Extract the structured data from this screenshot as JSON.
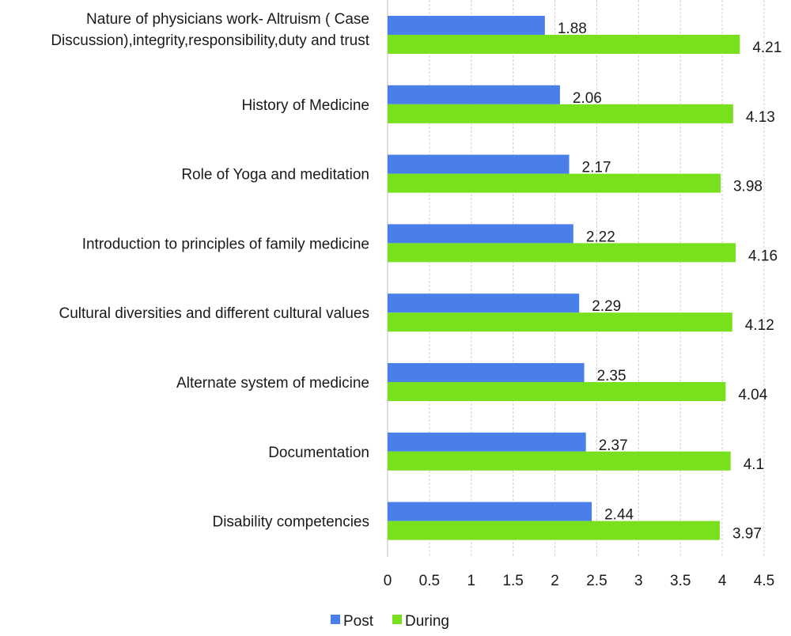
{
  "chart_data": {
    "type": "bar",
    "orientation": "horizontal",
    "title": "",
    "xlabel": "",
    "ylabel": "",
    "xlim": [
      0,
      4.5
    ],
    "xticks": [
      0,
      0.5,
      1,
      1.5,
      2,
      2.5,
      3,
      3.5,
      4,
      4.5
    ],
    "tick_labels": [
      "0",
      "0.5",
      "1",
      "1.5",
      "2",
      "2.5",
      "3",
      "3.5",
      "4",
      "4.5"
    ],
    "grid": true,
    "legend_position": "bottom",
    "categories": [
      [
        "Nature of physicians work- Altruism ( Case",
        "Discussion),integrity,responsibility,duty and trust"
      ],
      [
        "History of Medicine"
      ],
      [
        "Role of Yoga and meditation"
      ],
      [
        "Introduction to principles of family medicine"
      ],
      [
        "Cultural diversities and different cultural values"
      ],
      [
        "Alternate system of medicine"
      ],
      [
        "Documentation"
      ],
      [
        "Disability competencies"
      ]
    ],
    "series": [
      {
        "name": "Post",
        "color": "#4a7ee8",
        "values": [
          1.88,
          2.06,
          2.17,
          2.22,
          2.29,
          2.35,
          2.37,
          2.44
        ],
        "labels": [
          "1.88",
          "2.06",
          "2.17",
          "2.22",
          "2.29",
          "2.35",
          "2.37",
          "2.44"
        ]
      },
      {
        "name": "During",
        "color": "#78e01c",
        "values": [
          4.21,
          4.13,
          3.98,
          4.16,
          4.12,
          4.04,
          4.1,
          3.97
        ],
        "labels": [
          "4.21",
          "4.13",
          "3.98",
          "4.16",
          "4.12",
          "4.04",
          "4.1",
          "3.97"
        ]
      }
    ]
  }
}
